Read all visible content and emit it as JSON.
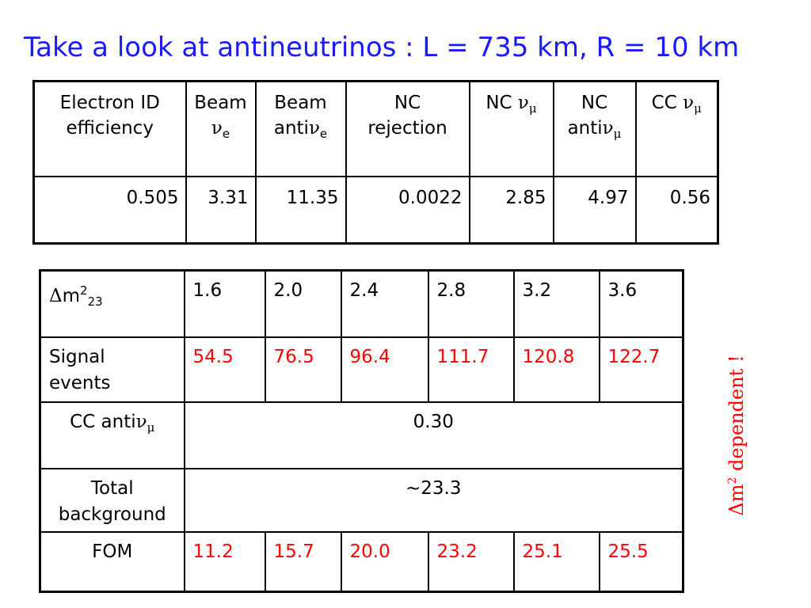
{
  "title": "Take a look at antineutrinos : L = 735 km, R = 10 km",
  "table1": {
    "headers": {
      "eid_line1": "Electron ID",
      "eid_line2": "efficiency",
      "beam": "Beam",
      "beam_sym": "ν",
      "beam_sub": "e",
      "beamanti_line1": "Beam",
      "beamanti_prefix": "anti",
      "beamanti_sym": "ν",
      "beamanti_sub": "e",
      "ncrej_line1": "NC",
      "ncrej_line2": "rejection",
      "ncnumu_prefix": "NC ",
      "ncnumu_sym": "ν",
      "ncnumu_sub": "μ",
      "ncanti_line1": "NC",
      "ncanti_prefix": "anti",
      "ncanti_sym": "ν",
      "ncanti_sub": "μ",
      "ccnumu_prefix": "CC ",
      "ccnumu_sym": "ν",
      "ccnumu_sub": "μ"
    },
    "values": [
      "0.505",
      "3.31",
      "11.35",
      "0.0022",
      "2.85",
      "4.97",
      "0.56"
    ]
  },
  "table2": {
    "dm_sym": "Δ",
    "dm_m": "m",
    "dm_sup": "2",
    "dm_sub": "23",
    "dm_values": [
      "1.6",
      "2.0",
      "2.4",
      "2.8",
      "3.2",
      "3.6"
    ],
    "signal_line1": "Signal",
    "signal_line2": "events",
    "signal_values": [
      "54.5",
      "76.5",
      "96.4",
      "111.7",
      "120.8",
      "122.7"
    ],
    "ccanti_prefix": "CC anti",
    "ccanti_sym": "ν",
    "ccanti_sub": "μ",
    "ccanti_value": "0.30",
    "total_line1": "Total",
    "total_line2": "background",
    "total_value": "~23.3",
    "fom_label": "FOM",
    "fom_values": [
      "11.2",
      "15.7",
      "20.0",
      "23.2",
      "25.1",
      "25.5"
    ]
  },
  "side_note": {
    "delta": "Δ",
    "m": "m",
    "sup": "2",
    "text": " dependent !"
  },
  "colors": {
    "title": "#1a1aff",
    "highlight": "#ff0000"
  }
}
